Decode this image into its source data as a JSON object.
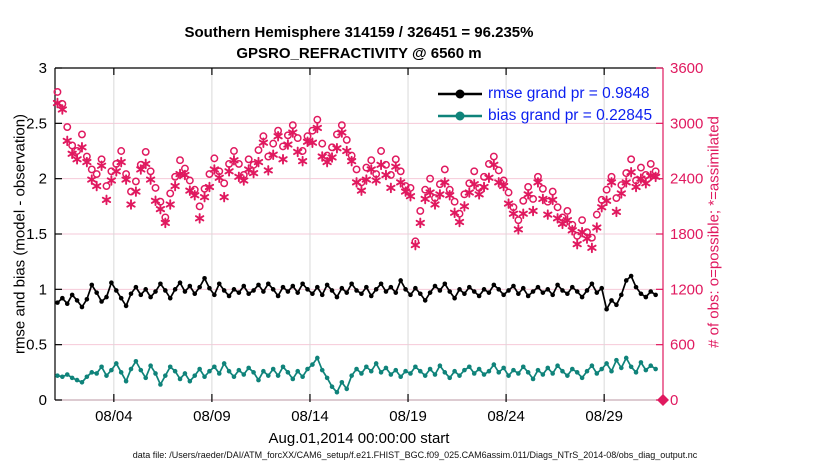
{
  "figure": {
    "caption": "data file: /Users/raeder/DAI/ATM_forcXX/CAM6_setup/f.e21.FHIST_BGC.f09_025.CAM6assim.011/Diags_NTrS_2014-08/obs_diag_output.nc"
  },
  "chart_data": {
    "type": "line+scatter",
    "title": "Southern Hemisphere 314159 / 326451 = 96.235%",
    "subtitle": "GPSRO_REFRACTIVITY @ 6560 m",
    "x_axis": {
      "label": "Aug.01,2014 00:00:00 start",
      "range_days": [
        0,
        31
      ],
      "tick_days": [
        3,
        8,
        13,
        18,
        23,
        28
      ],
      "tick_labels": [
        "08/04",
        "08/09",
        "08/14",
        "08/19",
        "08/24",
        "08/29"
      ]
    },
    "y_left": {
      "label": "rmse and bias (model - observation)",
      "range": [
        0,
        3
      ],
      "ticks": [
        0,
        0.5,
        1,
        1.5,
        2,
        2.5,
        3
      ],
      "tick_labels": [
        "0",
        "0.5",
        "1",
        "1.5",
        "2",
        "2.5",
        "3"
      ]
    },
    "y_right": {
      "label": "# of obs: o=possible; *=assimilated",
      "range": [
        0,
        3600
      ],
      "ticks": [
        0,
        600,
        1200,
        1800,
        2400,
        3000,
        3600
      ],
      "tick_labels": [
        "0",
        "600",
        "1200",
        "1800",
        "2400",
        "3000",
        "3600"
      ]
    },
    "legend": [
      {
        "label": "rmse grand pr = 0.9848",
        "color": "#000000"
      },
      {
        "label": "bias grand pr = 0.22845",
        "color": "#0f837a"
      }
    ],
    "stats": {
      "rmse_grand": 0.9848,
      "bias_grand": 0.22845,
      "assimilated_total": 314159,
      "possible_total": 326451,
      "percent": 96.235
    },
    "colors": {
      "pink": "#e0195f",
      "teal": "#0f837a",
      "blue_legend_text": "#0a1ef0",
      "grid_x": "#d9d9d9",
      "grid_y": "#f6c9d8",
      "axis_bottom": "#d2bac2",
      "black": "#000000"
    },
    "grid": {
      "vertical": true,
      "horizontal": true
    },
    "legend_position": "upper-right-inside",
    "time_days_start": 0.125,
    "time_step_days": 0.25,
    "series": {
      "rmse": {
        "name": "rmse",
        "axis": "left",
        "marker": "filled-dot-line",
        "values": [
          0.88,
          0.92,
          0.87,
          0.95,
          0.9,
          0.84,
          0.91,
          1.04,
          0.97,
          0.89,
          0.93,
          1.06,
          0.99,
          0.92,
          0.85,
          0.96,
          1.02,
          0.95,
          1.0,
          0.93,
          0.98,
          1.05,
          0.99,
          0.92,
          1.0,
          1.06,
          0.98,
          1.03,
          0.96,
          1.02,
          1.1,
          1.01,
          0.95,
          1.05,
          0.99,
          0.94,
          1.0,
          0.97,
          1.03,
          0.96,
          0.99,
          1.04,
          0.98,
          1.05,
          1.0,
          0.94,
          1.02,
          0.98,
          1.03,
          0.97,
          1.05,
          1.0,
          0.96,
          1.02,
          0.95,
          1.04,
          0.99,
          0.93,
          1.01,
          0.97,
          1.05,
          0.99,
          0.96,
          1.02,
          0.94,
          1.0,
          1.05,
          0.98,
          1.02,
          0.97,
          1.08,
          1.0,
          0.95,
          1.01,
          0.96,
          0.9,
          0.97,
          1.03,
          0.99,
          1.05,
          0.98,
          0.92,
          1.0,
          0.96,
          1.02,
          0.98,
          0.94,
          1.0,
          0.97,
          1.04,
          1.0,
          0.95,
          0.99,
          1.03,
          0.96,
          1.01,
          0.94,
          0.98,
          1.02,
          0.97,
          1.0,
          0.95,
          1.04,
          0.99,
          0.96,
          1.02,
          0.98,
          0.93,
          0.99,
          1.05,
          0.97,
          1.01,
          0.82,
          0.9,
          0.86,
          0.95,
          1.08,
          1.12,
          1.02,
          0.96,
          0.93,
          0.98,
          0.95
        ]
      },
      "bias": {
        "name": "bias",
        "axis": "left",
        "marker": "filled-dot-line",
        "values": [
          0.22,
          0.21,
          0.23,
          0.2,
          0.18,
          0.16,
          0.21,
          0.25,
          0.24,
          0.3,
          0.22,
          0.27,
          0.33,
          0.25,
          0.17,
          0.28,
          0.35,
          0.27,
          0.2,
          0.31,
          0.24,
          0.14,
          0.22,
          0.3,
          0.26,
          0.19,
          0.24,
          0.17,
          0.22,
          0.28,
          0.21,
          0.26,
          0.3,
          0.24,
          0.33,
          0.26,
          0.21,
          0.27,
          0.23,
          0.29,
          0.25,
          0.18,
          0.26,
          0.22,
          0.28,
          0.22,
          0.3,
          0.25,
          0.19,
          0.26,
          0.21,
          0.28,
          0.32,
          0.38,
          0.27,
          0.2,
          0.12,
          0.07,
          0.16,
          0.1,
          0.22,
          0.28,
          0.24,
          0.3,
          0.26,
          0.33,
          0.25,
          0.29,
          0.23,
          0.27,
          0.21,
          0.26,
          0.24,
          0.3,
          0.26,
          0.22,
          0.28,
          0.23,
          0.31,
          0.25,
          0.2,
          0.26,
          0.22,
          0.27,
          0.3,
          0.24,
          0.28,
          0.23,
          0.26,
          0.32,
          0.25,
          0.29,
          0.22,
          0.27,
          0.24,
          0.3,
          0.25,
          0.19,
          0.27,
          0.23,
          0.29,
          0.24,
          0.31,
          0.26,
          0.22,
          0.28,
          0.25,
          0.2,
          0.26,
          0.31,
          0.24,
          0.28,
          0.33,
          0.26,
          0.36,
          0.29,
          0.38,
          0.3,
          0.25,
          0.34,
          0.27,
          0.31,
          0.28
        ]
      },
      "possible": {
        "name": "possible",
        "axis": "right",
        "marker": "open-circle",
        "values": [
          3340,
          3210,
          2960,
          2760,
          2700,
          2880,
          2640,
          2500,
          2450,
          2610,
          2320,
          2480,
          2560,
          2700,
          2450,
          2260,
          2370,
          2550,
          2690,
          2480,
          2300,
          2150,
          1980,
          2240,
          2420,
          2600,
          2510,
          2380,
          2280,
          2100,
          2290,
          2450,
          2620,
          2480,
          2350,
          2560,
          2700,
          2560,
          2440,
          2610,
          2550,
          2710,
          2860,
          2640,
          2780,
          2920,
          2750,
          2870,
          2980,
          2840,
          2700,
          2860,
          2920,
          3040,
          2780,
          2650,
          2740,
          2880,
          2980,
          2820,
          2650,
          2500,
          2360,
          2520,
          2600,
          2450,
          2700,
          2550,
          2440,
          2610,
          2480,
          2320,
          2300,
          1720,
          2050,
          2280,
          2400,
          2190,
          2340,
          2500,
          2280,
          2150,
          2020,
          2230,
          2350,
          2480,
          2300,
          2420,
          2560,
          2640,
          2490,
          2380,
          2250,
          2090,
          1950,
          2160,
          2310,
          2180,
          2420,
          2290,
          2150,
          2260,
          2090,
          1980,
          2050,
          1900,
          1780,
          1950,
          1820,
          1760,
          2010,
          2170,
          2280,
          2420,
          2190,
          2330,
          2460,
          2610,
          2380,
          2520,
          2440,
          2560,
          2480
        ]
      },
      "assimilated": {
        "name": "assimilated",
        "axis": "right",
        "marker": "asterisk",
        "values": [
          3220,
          3150,
          2810,
          2670,
          2610,
          2740,
          2580,
          2390,
          2320,
          2540,
          2170,
          2380,
          2480,
          2580,
          2390,
          2120,
          2260,
          2500,
          2560,
          2390,
          2160,
          2070,
          1920,
          2120,
          2320,
          2450,
          2440,
          2270,
          2220,
          1970,
          2200,
          2310,
          2500,
          2410,
          2200,
          2480,
          2600,
          2420,
          2380,
          2500,
          2460,
          2580,
          2790,
          2490,
          2660,
          2860,
          2610,
          2770,
          2900,
          2690,
          2590,
          2800,
          2790,
          2950,
          2640,
          2580,
          2630,
          2730,
          2900,
          2700,
          2590,
          2360,
          2270,
          2390,
          2500,
          2380,
          2550,
          2440,
          2300,
          2530,
          2360,
          2260,
          2210,
          1680,
          1920,
          2180,
          2250,
          2120,
          2230,
          2360,
          2220,
          2030,
          1930,
          2100,
          2250,
          2340,
          2230,
          2310,
          2410,
          2550,
          2360,
          2320,
          2130,
          2020,
          1850,
          2020,
          2230,
          2050,
          2360,
          2180,
          2010,
          2170,
          1970,
          1910,
          1950,
          1840,
          1690,
          1820,
          1750,
          1650,
          1870,
          2090,
          2160,
          2360,
          2040,
          2240,
          2360,
          2470,
          2310,
          2400,
          2350,
          2430,
          2420
        ]
      }
    }
  }
}
